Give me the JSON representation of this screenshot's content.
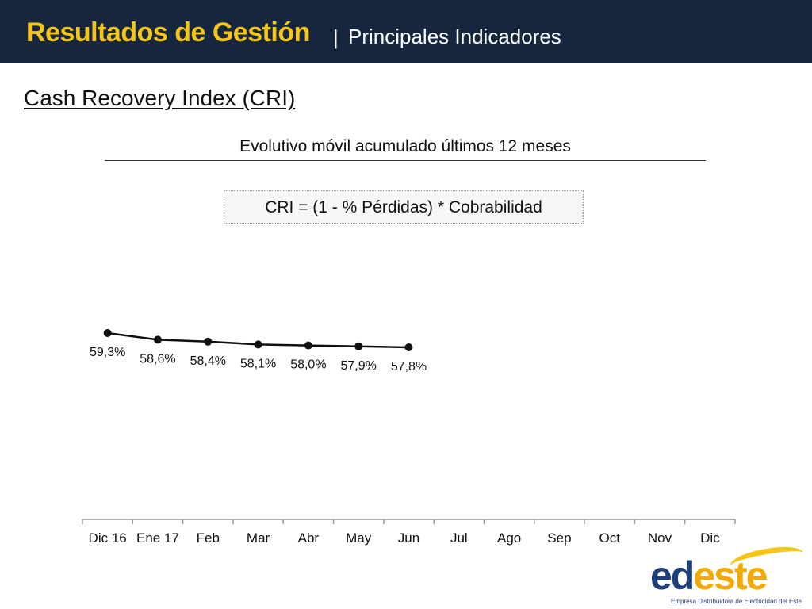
{
  "header": {
    "title": "Resultados de Gestión",
    "separator": "|",
    "subtitle": "Principales Indicadores",
    "colors": {
      "background": "#16263f",
      "title": "#f5c518",
      "subtitle": "#ffffff"
    }
  },
  "section_title": "Cash Recovery Index (CRI)",
  "chart_subtitle": "Evolutivo móvil acumulado últimos 12 meses",
  "formula": "CRI = (1 - % Pérdidas) * Cobrabilidad",
  "chart_data": {
    "type": "line",
    "title": "Evolutivo móvil acumulado últimos 12 meses",
    "categories": [
      "Dic 16",
      "Ene 17",
      "Feb",
      "Mar",
      "Abr",
      "May",
      "Jun",
      "Jul",
      "Ago",
      "Sep",
      "Oct",
      "Nov",
      "Dic"
    ],
    "series": [
      {
        "values": [
          59.3,
          58.6,
          58.4,
          58.1,
          58.0,
          57.9,
          57.8,
          null,
          null,
          null,
          null,
          null,
          null
        ],
        "color": "#111111"
      }
    ],
    "data_labels": [
      "59,3%",
      "58,6%",
      "58,4%",
      "58,1%",
      "58,0%",
      "57,9%",
      "57,8%"
    ],
    "xlabel": "",
    "ylabel": "",
    "grid": false,
    "legend": "none"
  },
  "logo": {
    "part1": "ed",
    "part2": "este",
    "tagline": "Empresa Distribuidora de Electricidad del Este",
    "colors": {
      "primary": "#1f3f7a",
      "accent": "#f2a900"
    }
  }
}
